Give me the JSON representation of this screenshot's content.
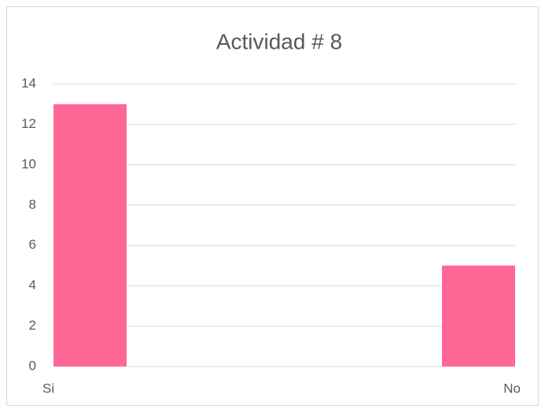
{
  "chart_data": {
    "type": "bar",
    "title": "Actividad # 8",
    "categories": [
      "Si",
      "No"
    ],
    "values": [
      13,
      5
    ],
    "color": "#ff6797",
    "ylim": [
      0,
      14
    ],
    "yticks": [
      0,
      2,
      4,
      6,
      8,
      10,
      12,
      14
    ],
    "grid": true
  }
}
